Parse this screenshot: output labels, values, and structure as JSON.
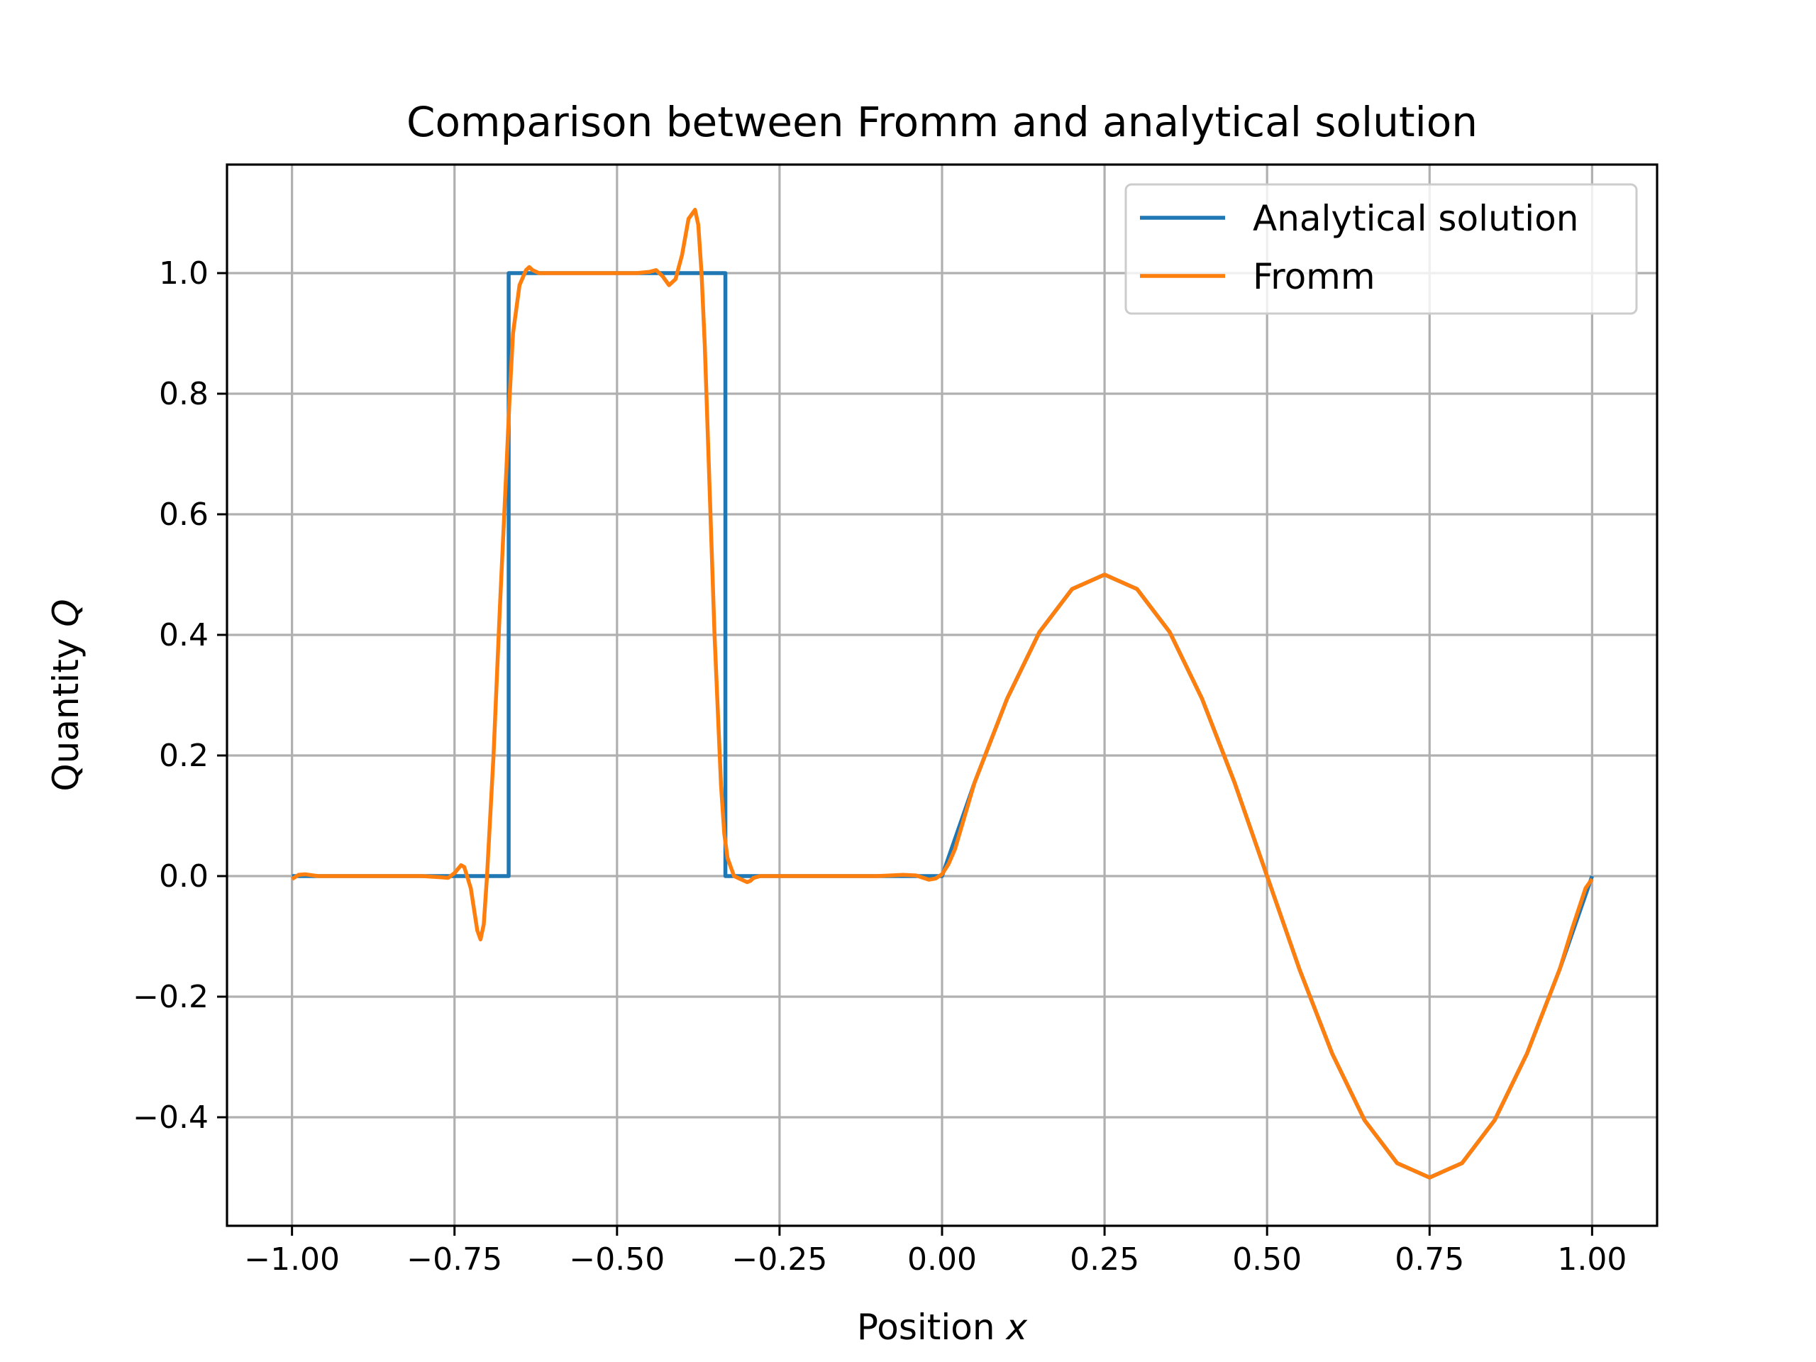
{
  "chart_data": {
    "type": "line",
    "title": "Comparison between Fromm and analytical solution",
    "xlabel": "Position",
    "xlabel_var": "x",
    "ylabel": "Quantity",
    "ylabel_var": "Q",
    "xlim": [
      -1.1,
      1.1
    ],
    "ylim": [
      -0.58,
      1.18
    ],
    "x_ticks": [
      -1.0,
      -0.75,
      -0.5,
      -0.25,
      0.0,
      0.25,
      0.5,
      0.75,
      1.0
    ],
    "x_tick_labels": [
      "−1.00",
      "−0.75",
      "−0.50",
      "−0.25",
      "0.00",
      "0.25",
      "0.50",
      "0.75",
      "1.00"
    ],
    "y_ticks": [
      -0.4,
      -0.2,
      0.0,
      0.2,
      0.4,
      0.6,
      0.8,
      1.0
    ],
    "y_tick_labels": [
      "−0.4",
      "−0.2",
      "0.0",
      "0.2",
      "0.4",
      "0.6",
      "0.8",
      "1.0"
    ],
    "grid": true,
    "legend_position": "top-right",
    "series": [
      {
        "name": "Analytical solution",
        "color": "#1f77b4",
        "x": [
          -1.0,
          -0.6667,
          -0.6667,
          -0.3333,
          -0.3333,
          0.0,
          0.05,
          0.1,
          0.15,
          0.2,
          0.25,
          0.3,
          0.35,
          0.4,
          0.45,
          0.5,
          0.55,
          0.6,
          0.65,
          0.7,
          0.75,
          0.8,
          0.85,
          0.9,
          0.95,
          1.0
        ],
        "y": [
          0.0,
          0.0,
          1.0,
          1.0,
          0.0,
          0.0,
          0.155,
          0.294,
          0.405,
          0.476,
          0.5,
          0.476,
          0.405,
          0.294,
          0.155,
          0.0,
          -0.155,
          -0.294,
          -0.405,
          -0.476,
          -0.5,
          -0.476,
          -0.405,
          -0.294,
          -0.155,
          0.0
        ]
      },
      {
        "name": "Fromm",
        "color": "#ff7f0e",
        "x": [
          -1.0,
          -0.99,
          -0.98,
          -0.96,
          -0.9,
          -0.85,
          -0.8,
          -0.77,
          -0.76,
          -0.75,
          -0.74,
          -0.735,
          -0.725,
          -0.715,
          -0.71,
          -0.705,
          -0.7,
          -0.69,
          -0.68,
          -0.67,
          -0.665,
          -0.66,
          -0.65,
          -0.64,
          -0.635,
          -0.63,
          -0.62,
          -0.6,
          -0.55,
          -0.5,
          -0.47,
          -0.45,
          -0.44,
          -0.43,
          -0.42,
          -0.41,
          -0.4,
          -0.39,
          -0.38,
          -0.375,
          -0.37,
          -0.365,
          -0.36,
          -0.35,
          -0.34,
          -0.335,
          -0.33,
          -0.32,
          -0.31,
          -0.3,
          -0.295,
          -0.29,
          -0.28,
          -0.27,
          -0.25,
          -0.2,
          -0.15,
          -0.1,
          -0.06,
          -0.04,
          -0.02,
          -0.01,
          0.0,
          0.01,
          0.02,
          0.05,
          0.1,
          0.15,
          0.2,
          0.25,
          0.3,
          0.35,
          0.4,
          0.45,
          0.5,
          0.55,
          0.6,
          0.65,
          0.7,
          0.75,
          0.8,
          0.85,
          0.9,
          0.95,
          0.97,
          0.99,
          1.0
        ],
        "y": [
          -0.005,
          0.002,
          0.003,
          0.0,
          0.0,
          0.0,
          0.0,
          -0.002,
          -0.003,
          0.005,
          0.018,
          0.015,
          -0.02,
          -0.09,
          -0.105,
          -0.08,
          0.0,
          0.2,
          0.45,
          0.68,
          0.8,
          0.9,
          0.98,
          1.005,
          1.01,
          1.005,
          1.0,
          1.0,
          1.0,
          1.0,
          1.0,
          1.002,
          1.005,
          0.995,
          0.98,
          0.99,
          1.03,
          1.09,
          1.105,
          1.08,
          1.0,
          0.88,
          0.72,
          0.4,
          0.15,
          0.07,
          0.03,
          0.0,
          -0.005,
          -0.01,
          -0.008,
          -0.003,
          0.0,
          0.0,
          0.0,
          0.0,
          0.0,
          0.0,
          0.002,
          0.001,
          -0.006,
          -0.004,
          0.003,
          0.02,
          0.045,
          0.155,
          0.294,
          0.405,
          0.476,
          0.5,
          0.476,
          0.405,
          0.294,
          0.155,
          0.0,
          -0.155,
          -0.294,
          -0.405,
          -0.476,
          -0.5,
          -0.476,
          -0.405,
          -0.294,
          -0.155,
          -0.085,
          -0.02,
          -0.005
        ]
      }
    ]
  }
}
